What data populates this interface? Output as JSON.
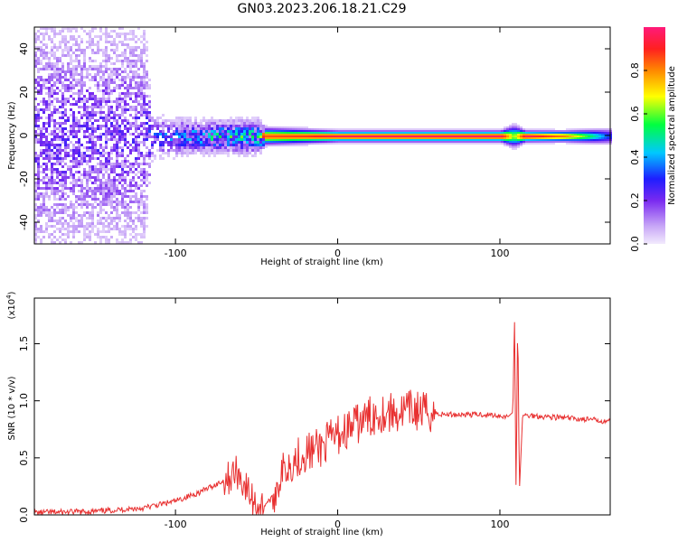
{
  "title": "GN03.2023.206.18.21.C29",
  "chart_data": [
    {
      "type": "heatmap",
      "xlabel": "Height of straight line (km)",
      "ylabel": "Frequency (Hz)",
      "xlim": [
        -187,
        168
      ],
      "ylim": [
        -50,
        50
      ],
      "x_ticks": [
        -100,
        0,
        100
      ],
      "y_ticks": [
        -40,
        -20,
        0,
        20,
        40
      ],
      "colorbar": {
        "label": "Normalized spectral amplitude",
        "range": [
          0.0,
          1.0
        ],
        "ticks": [
          "0.0",
          "0.2",
          "0.4",
          "0.6",
          "0.8"
        ]
      },
      "profile": [
        {
          "x": -187,
          "amp": 0.2,
          "bw": 48
        },
        {
          "x": -120,
          "amp": 0.2,
          "bw": 45
        },
        {
          "x": -115,
          "amp": 0.28,
          "bw": 8
        },
        {
          "x": -90,
          "amp": 0.38,
          "bw": 6
        },
        {
          "x": -70,
          "amp": 0.45,
          "bw": 6
        },
        {
          "x": -50,
          "amp": 0.5,
          "bw": 6
        },
        {
          "x": -45,
          "amp": 0.85,
          "bw": 3
        },
        {
          "x": -20,
          "amp": 0.88,
          "bw": 2.5
        },
        {
          "x": 0,
          "amp": 0.95,
          "bw": 2
        },
        {
          "x": 100,
          "amp": 0.97,
          "bw": 2
        },
        {
          "x": 108,
          "amp": 0.6,
          "bw": 4
        },
        {
          "x": 115,
          "amp": 0.97,
          "bw": 2
        },
        {
          "x": 140,
          "amp": 0.8,
          "bw": 2
        },
        {
          "x": 168,
          "amp": 0.3,
          "bw": 3
        }
      ]
    },
    {
      "type": "line",
      "xlabel": "Height of straight line (km)",
      "ylabel": "SNR (10 * v/v)",
      "multiplier": "(x10",
      "multiplier_exp": "4",
      "multiplier_close": ")",
      "xlim": [
        -187,
        168
      ],
      "ylim": [
        0,
        19000
      ],
      "x_ticks": [
        -100,
        0,
        100
      ],
      "y_ticks": [
        "0.0",
        "0.5",
        "1.0",
        "1.5"
      ],
      "color": "#e83030",
      "series": [
        {
          "x": [
            -187,
            -150,
            -120,
            -100,
            -85,
            -70,
            -62,
            -57,
            -52,
            -47,
            -40,
            -35,
            -30,
            -25,
            -20,
            -15,
            -10,
            -5,
            0,
            5,
            10,
            15,
            20,
            25,
            30,
            35,
            40,
            45,
            50,
            55,
            60,
            65,
            70,
            80,
            90,
            100,
            105,
            108,
            109,
            110,
            111,
            112,
            114,
            120,
            130,
            140,
            150,
            160,
            168
          ],
          "y": [
            200,
            300,
            600,
            1200,
            2000,
            3000,
            3800,
            2500,
            1200,
            700,
            1500,
            3500,
            4500,
            5000,
            5500,
            5600,
            6000,
            6500,
            7000,
            7400,
            7800,
            8200,
            8600,
            8900,
            9000,
            8900,
            9000,
            9200,
            9100,
            9000,
            8900,
            8800,
            8800,
            8800,
            8800,
            8700,
            8600,
            9000,
            17500,
            1500,
            18000,
            2000,
            8700,
            8700,
            8600,
            8500,
            8400,
            8300,
            8200
          ]
        }
      ]
    }
  ]
}
